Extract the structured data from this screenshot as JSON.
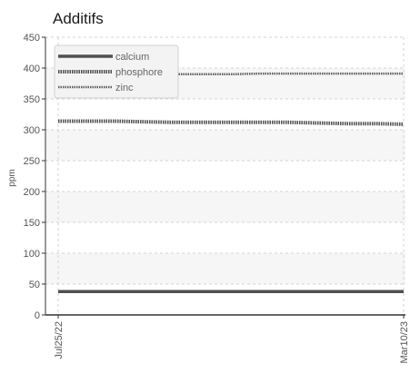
{
  "chart_data": {
    "type": "line",
    "title": "Additifs",
    "xlabel": "",
    "ylabel": "ppm",
    "x_tick_labels": [
      "Jul25/22",
      "Mar10/23"
    ],
    "y_ticks": [
      0,
      50,
      100,
      150,
      200,
      250,
      300,
      350,
      400,
      450
    ],
    "ylim": [
      0,
      450
    ],
    "grid": true,
    "legend_position": "top-left",
    "series": [
      {
        "name": "calcium",
        "color": "#505050",
        "style": "solid",
        "values": [
          38,
          38,
          38,
          38,
          38,
          38,
          38,
          38,
          38,
          38,
          38,
          38,
          38
        ]
      },
      {
        "name": "phosphore",
        "color": "#505050",
        "style": "dashed",
        "values": [
          314,
          314,
          314,
          313,
          312,
          312,
          312,
          312,
          312,
          311,
          310,
          310,
          309
        ]
      },
      {
        "name": "zinc",
        "color": "#606060",
        "style": "dashed",
        "values": [
          391,
          390,
          390,
          390,
          390,
          390,
          390,
          391,
          391,
          391,
          391,
          391,
          391
        ]
      }
    ]
  }
}
